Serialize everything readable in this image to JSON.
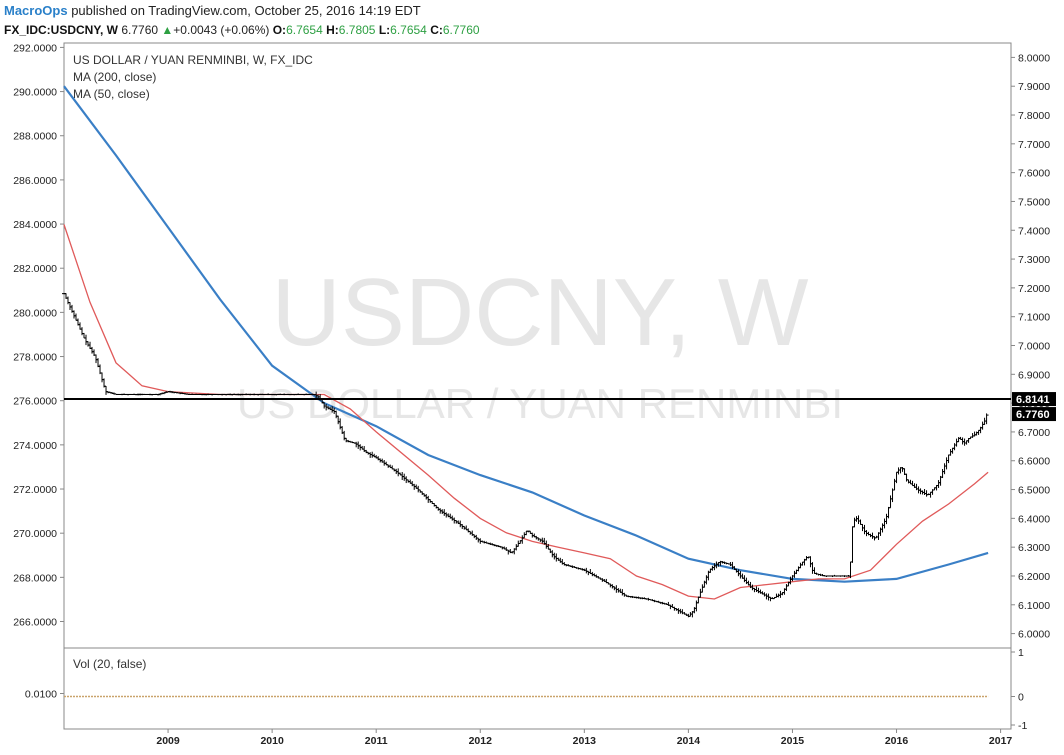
{
  "header": {
    "brand": "MacroOps",
    "published": " published on TradingView.com, October 25, 2016 14:19 EDT",
    "symbol": "FX_IDC:USDCNY, W",
    "last": "6.7760",
    "change_arrow": "▲",
    "change": "+0.0043 (+0.06%)",
    "o_label": "O:",
    "o": "6.7654",
    "h_label": "H:",
    "h": "6.7805",
    "l_label": "L:",
    "l": "6.7654",
    "c_label": "C:",
    "c": "6.7760"
  },
  "legend": {
    "title": "US DOLLAR / YUAN RENMINBI, W, FX_IDC",
    "ma200": "MA (200, close)",
    "ma50": "MA (50, close)",
    "vol": "Vol (20, false)"
  },
  "watermark": {
    "symbol": "USDCNY, W",
    "name": "US DOLLAR / YUAN RENMINBI"
  },
  "colors": {
    "price": "#000000",
    "ma200": "#3a7fc6",
    "ma50": "#e05a5a",
    "hline": "#000000",
    "brand": "#2a80c9",
    "up": "#2ea043"
  },
  "chart_data": {
    "type": "line",
    "title": "US DOLLAR / YUAN RENMINBI, W, FX_IDC",
    "left_axis": {
      "ticks": [
        "292.0000",
        "290.0000",
        "288.0000",
        "286.0000",
        "284.0000",
        "282.0000",
        "280.0000",
        "278.0000",
        "276.0000",
        "274.0000",
        "272.0000",
        "270.0000",
        "268.0000",
        "266.0000"
      ],
      "range": [
        264.8,
        292.2
      ]
    },
    "right_axis": {
      "ticks": [
        "8.0000",
        "7.9000",
        "7.8000",
        "7.7000",
        "7.6000",
        "7.5000",
        "7.4000",
        "7.3000",
        "7.2000",
        "7.1000",
        "7.0000",
        "6.9000",
        "6.8000",
        "6.7000",
        "6.6000",
        "6.5000",
        "6.4000",
        "6.3000",
        "6.2000",
        "6.1000",
        "6.0000"
      ],
      "range": [
        5.95,
        8.05
      ]
    },
    "x_axis": {
      "labels": [
        "2009",
        "2010",
        "2011",
        "2012",
        "2013",
        "2014",
        "2015",
        "2016",
        "2017"
      ],
      "range": [
        2008.0,
        2017.1
      ]
    },
    "price_labels": [
      "6.8141",
      "6.7760"
    ],
    "hline_value": 6.8141,
    "series": [
      {
        "name": "USDCNY",
        "points": [
          [
            2008.0,
            7.18
          ],
          [
            2008.1,
            7.1
          ],
          [
            2008.2,
            7.02
          ],
          [
            2008.3,
            6.96
          ],
          [
            2008.35,
            6.9
          ],
          [
            2008.4,
            6.84
          ],
          [
            2008.5,
            6.83
          ],
          [
            2008.7,
            6.83
          ],
          [
            2008.9,
            6.83
          ],
          [
            2009.0,
            6.84
          ],
          [
            2009.2,
            6.83
          ],
          [
            2009.4,
            6.83
          ],
          [
            2009.6,
            6.83
          ],
          [
            2009.8,
            6.83
          ],
          [
            2010.0,
            6.83
          ],
          [
            2010.2,
            6.83
          ],
          [
            2010.4,
            6.83
          ],
          [
            2010.45,
            6.82
          ],
          [
            2010.5,
            6.79
          ],
          [
            2010.6,
            6.77
          ],
          [
            2010.65,
            6.72
          ],
          [
            2010.7,
            6.67
          ],
          [
            2010.8,
            6.66
          ],
          [
            2010.9,
            6.63
          ],
          [
            2011.0,
            6.61
          ],
          [
            2011.2,
            6.56
          ],
          [
            2011.4,
            6.5
          ],
          [
            2011.6,
            6.43
          ],
          [
            2011.8,
            6.38
          ],
          [
            2012.0,
            6.32
          ],
          [
            2012.2,
            6.3
          ],
          [
            2012.3,
            6.28
          ],
          [
            2012.4,
            6.33
          ],
          [
            2012.45,
            6.36
          ],
          [
            2012.5,
            6.34
          ],
          [
            2012.6,
            6.32
          ],
          [
            2012.7,
            6.27
          ],
          [
            2012.8,
            6.24
          ],
          [
            2012.9,
            6.23
          ],
          [
            2013.0,
            6.22
          ],
          [
            2013.2,
            6.18
          ],
          [
            2013.4,
            6.13
          ],
          [
            2013.6,
            6.12
          ],
          [
            2013.8,
            6.1
          ],
          [
            2013.95,
            6.07
          ],
          [
            2014.0,
            6.06
          ],
          [
            2014.05,
            6.08
          ],
          [
            2014.1,
            6.13
          ],
          [
            2014.2,
            6.22
          ],
          [
            2014.3,
            6.25
          ],
          [
            2014.4,
            6.24
          ],
          [
            2014.5,
            6.2
          ],
          [
            2014.6,
            6.16
          ],
          [
            2014.7,
            6.14
          ],
          [
            2014.8,
            6.12
          ],
          [
            2014.9,
            6.14
          ],
          [
            2015.0,
            6.2
          ],
          [
            2015.1,
            6.25
          ],
          [
            2015.15,
            6.27
          ],
          [
            2015.2,
            6.21
          ],
          [
            2015.3,
            6.2
          ],
          [
            2015.4,
            6.2
          ],
          [
            2015.55,
            6.2
          ],
          [
            2015.58,
            6.39
          ],
          [
            2015.62,
            6.4
          ],
          [
            2015.7,
            6.35
          ],
          [
            2015.8,
            6.33
          ],
          [
            2015.9,
            6.4
          ],
          [
            2016.0,
            6.56
          ],
          [
            2016.05,
            6.58
          ],
          [
            2016.1,
            6.53
          ],
          [
            2016.2,
            6.5
          ],
          [
            2016.3,
            6.48
          ],
          [
            2016.4,
            6.52
          ],
          [
            2016.5,
            6.62
          ],
          [
            2016.6,
            6.68
          ],
          [
            2016.65,
            6.66
          ],
          [
            2016.7,
            6.68
          ],
          [
            2016.75,
            6.69
          ],
          [
            2016.8,
            6.71
          ],
          [
            2016.85,
            6.74
          ],
          [
            2016.88,
            6.776
          ]
        ]
      },
      {
        "name": "MA (200, close)",
        "points": [
          [
            2008.0,
            7.9
          ],
          [
            2008.5,
            7.66
          ],
          [
            2009.0,
            7.41
          ],
          [
            2009.5,
            7.16
          ],
          [
            2010.0,
            6.93
          ],
          [
            2010.5,
            6.8
          ],
          [
            2011.0,
            6.72
          ],
          [
            2011.5,
            6.62
          ],
          [
            2012.0,
            6.55
          ],
          [
            2012.5,
            6.49
          ],
          [
            2013.0,
            6.41
          ],
          [
            2013.5,
            6.34
          ],
          [
            2014.0,
            6.26
          ],
          [
            2014.5,
            6.22
          ],
          [
            2015.0,
            6.19
          ],
          [
            2015.5,
            6.18
          ],
          [
            2016.0,
            6.19
          ],
          [
            2016.5,
            6.24
          ],
          [
            2016.88,
            6.28
          ]
        ]
      },
      {
        "name": "MA (50, close)",
        "points": [
          [
            2008.0,
            7.42
          ],
          [
            2008.25,
            7.15
          ],
          [
            2008.5,
            6.94
          ],
          [
            2008.75,
            6.86
          ],
          [
            2009.0,
            6.84
          ],
          [
            2009.5,
            6.83
          ],
          [
            2010.0,
            6.83
          ],
          [
            2010.5,
            6.83
          ],
          [
            2010.75,
            6.78
          ],
          [
            2011.0,
            6.7
          ],
          [
            2011.5,
            6.55
          ],
          [
            2011.75,
            6.47
          ],
          [
            2012.0,
            6.4
          ],
          [
            2012.25,
            6.35
          ],
          [
            2012.5,
            6.32
          ],
          [
            2012.75,
            6.3
          ],
          [
            2013.0,
            6.28
          ],
          [
            2013.25,
            6.26
          ],
          [
            2013.5,
            6.2
          ],
          [
            2013.75,
            6.17
          ],
          [
            2014.0,
            6.13
          ],
          [
            2014.25,
            6.12
          ],
          [
            2014.5,
            6.16
          ],
          [
            2014.75,
            6.17
          ],
          [
            2015.0,
            6.18
          ],
          [
            2015.25,
            6.19
          ],
          [
            2015.5,
            6.19
          ],
          [
            2015.75,
            6.22
          ],
          [
            2016.0,
            6.31
          ],
          [
            2016.25,
            6.39
          ],
          [
            2016.5,
            6.45
          ],
          [
            2016.75,
            6.52
          ],
          [
            2016.88,
            6.56
          ]
        ]
      }
    ],
    "volume": {
      "left_ticks": [
        "0.0100"
      ],
      "right_ticks": [
        "1",
        "0",
        "-1"
      ]
    },
    "grid": false
  }
}
